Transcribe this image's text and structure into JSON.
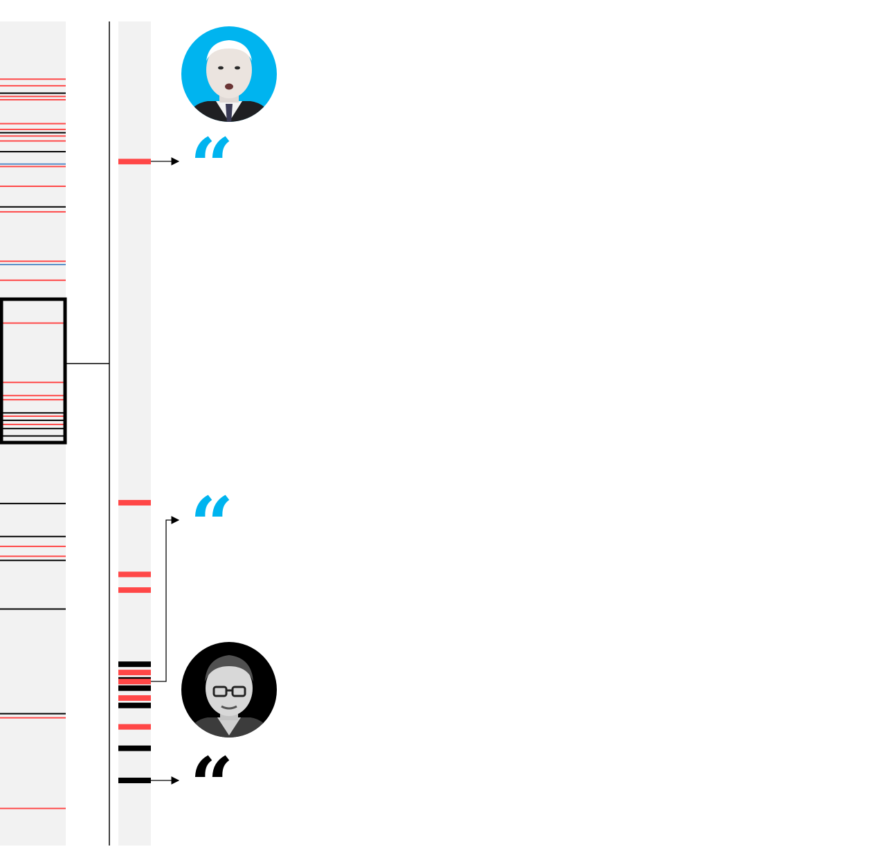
{
  "colors": {
    "red": "#ff4747",
    "black": "#000000",
    "blue": "#5a8fc8",
    "cyan": "#00b4ef",
    "track": "#f2f2f2",
    "connector": "#000000"
  },
  "overview_strip": {
    "marks": [
      {
        "pos": 0.07,
        "color": "red"
      },
      {
        "pos": 0.078,
        "color": "red"
      },
      {
        "pos": 0.087,
        "color": "black"
      },
      {
        "pos": 0.091,
        "color": "red"
      },
      {
        "pos": 0.095,
        "color": "red"
      },
      {
        "pos": 0.124,
        "color": "red"
      },
      {
        "pos": 0.131,
        "color": "red"
      },
      {
        "pos": 0.135,
        "color": "black"
      },
      {
        "pos": 0.139,
        "color": "red"
      },
      {
        "pos": 0.145,
        "color": "red"
      },
      {
        "pos": 0.158,
        "color": "black"
      },
      {
        "pos": 0.173,
        "color": "blue"
      },
      {
        "pos": 0.176,
        "color": "red"
      },
      {
        "pos": 0.2,
        "color": "red"
      },
      {
        "pos": 0.225,
        "color": "black"
      },
      {
        "pos": 0.231,
        "color": "red"
      },
      {
        "pos": 0.291,
        "color": "red"
      },
      {
        "pos": 0.295,
        "color": "blue"
      },
      {
        "pos": 0.314,
        "color": "red"
      },
      {
        "pos": 0.366,
        "color": "red"
      },
      {
        "pos": 0.438,
        "color": "red"
      },
      {
        "pos": 0.454,
        "color": "red"
      },
      {
        "pos": 0.459,
        "color": "red"
      },
      {
        "pos": 0.475,
        "color": "black"
      },
      {
        "pos": 0.479,
        "color": "red"
      },
      {
        "pos": 0.484,
        "color": "black"
      },
      {
        "pos": 0.489,
        "color": "red"
      },
      {
        "pos": 0.494,
        "color": "black"
      },
      {
        "pos": 0.503,
        "color": "black"
      },
      {
        "pos": 0.585,
        "color": "black"
      },
      {
        "pos": 0.625,
        "color": "black"
      },
      {
        "pos": 0.637,
        "color": "red"
      },
      {
        "pos": 0.649,
        "color": "red"
      },
      {
        "pos": 0.654,
        "color": "black"
      },
      {
        "pos": 0.713,
        "color": "black"
      },
      {
        "pos": 0.84,
        "color": "black"
      },
      {
        "pos": 0.845,
        "color": "red"
      },
      {
        "pos": 0.955,
        "color": "red"
      }
    ],
    "focus_window": {
      "start": 0.337,
      "end": 0.511
    }
  },
  "detail_strip": {
    "marks": [
      {
        "pos": 0.17,
        "color": "red"
      },
      {
        "pos": 0.584,
        "color": "red"
      },
      {
        "pos": 0.671,
        "color": "red"
      },
      {
        "pos": 0.69,
        "color": "red"
      },
      {
        "pos": 0.78,
        "color": "black"
      },
      {
        "pos": 0.79,
        "color": "red"
      },
      {
        "pos": 0.799,
        "color": "black"
      },
      {
        "pos": 0.801,
        "color": "red"
      },
      {
        "pos": 0.809,
        "color": "black"
      },
      {
        "pos": 0.821,
        "color": "red"
      },
      {
        "pos": 0.83,
        "color": "black"
      },
      {
        "pos": 0.856,
        "color": "red"
      },
      {
        "pos": 0.882,
        "color": "black"
      },
      {
        "pos": 0.921,
        "color": "black"
      }
    ]
  },
  "speakers": [
    {
      "id": "biden",
      "portrait_bg": "cyan",
      "portrait_style": "color"
    },
    {
      "id": "moderator",
      "portrait_bg": "black",
      "portrait_style": "grayscale"
    }
  ],
  "quotes": [
    {
      "speaker": "biden",
      "mark_color": "cyan",
      "glyph": "“",
      "text": ""
    },
    {
      "speaker": "biden",
      "mark_color": "cyan",
      "glyph": "“",
      "text": ""
    },
    {
      "speaker": "moderator",
      "mark_color": "black",
      "glyph": "“",
      "text": ""
    }
  ]
}
